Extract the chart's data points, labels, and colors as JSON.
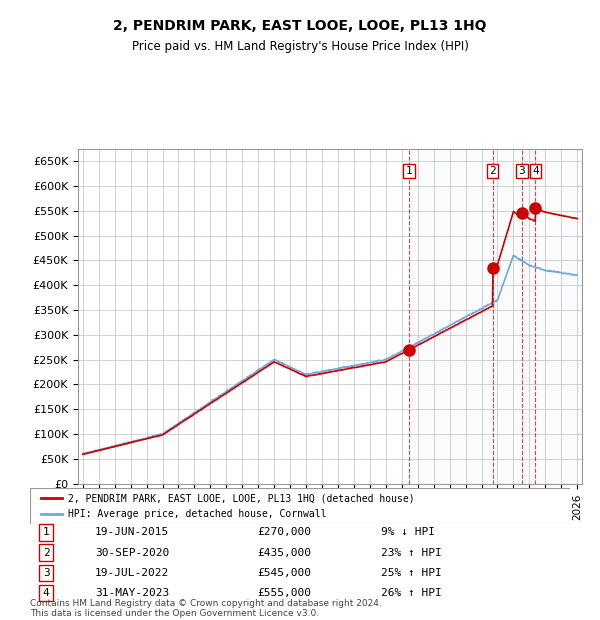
{
  "title": "2, PENDRIM PARK, EAST LOOE, LOOE, PL13 1HQ",
  "subtitle": "Price paid vs. HM Land Registry's House Price Index (HPI)",
  "ylabel": "",
  "xlabel": "",
  "ylim": [
    0,
    675000
  ],
  "yticks": [
    0,
    50000,
    100000,
    150000,
    200000,
    250000,
    300000,
    350000,
    400000,
    450000,
    500000,
    550000,
    600000,
    650000
  ],
  "ytick_labels": [
    "£0",
    "£50K",
    "£100K",
    "£150K",
    "£200K",
    "£250K",
    "£300K",
    "£350K",
    "£400K",
    "£450K",
    "£500K",
    "£550K",
    "£600K",
    "£650K"
  ],
  "sale_dates": [
    "2015-06-19",
    "2020-09-30",
    "2022-07-19",
    "2023-05-31"
  ],
  "sale_prices": [
    270000,
    435000,
    545000,
    555000
  ],
  "sale_labels": [
    "1",
    "2",
    "3",
    "4"
  ],
  "sale_pct": [
    "9% ↓ HPI",
    "23% ↑ HPI",
    "25% ↑ HPI",
    "26% ↑ HPI"
  ],
  "table_dates": [
    "19-JUN-2015",
    "30-SEP-2020",
    "19-JUL-2022",
    "31-MAY-2023"
  ],
  "hpi_color": "#6fa8dc",
  "price_color": "#cc0000",
  "sale_color": "#cc0000",
  "shade_color": "#dce6f1",
  "grid_color": "#c0c0c0",
  "legend_label_price": "2, PENDRIM PARK, EAST LOOE, LOOE, PL13 1HQ (detached house)",
  "legend_label_hpi": "HPI: Average price, detached house, Cornwall",
  "footnote": "Contains HM Land Registry data © Crown copyright and database right 2024.\nThis data is licensed under the Open Government Licence v3.0.",
  "xstart_year": 1995,
  "xend_year": 2026
}
